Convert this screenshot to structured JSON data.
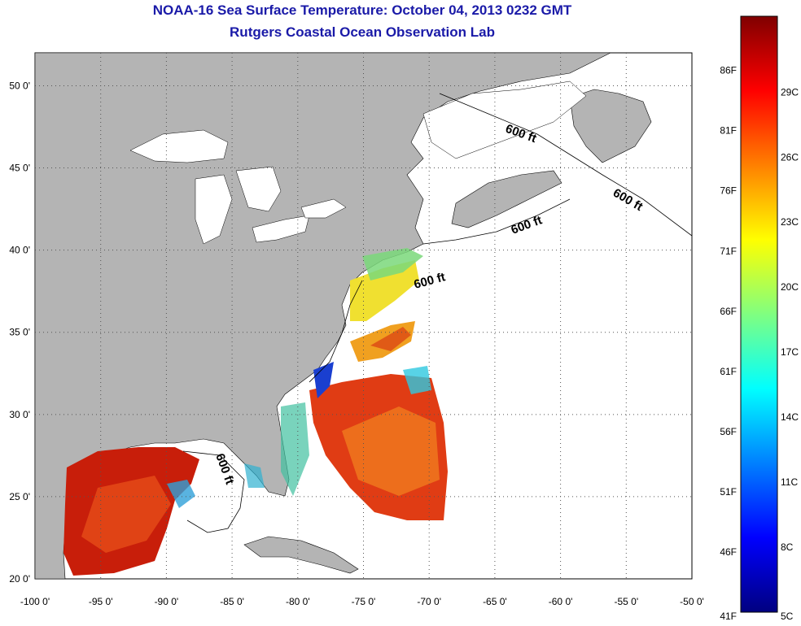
{
  "title": "NOAA-16 Sea Surface Temperature:  October 04, 2013 0232 GMT",
  "subtitle": "Rutgers Coastal Ocean Observation Lab",
  "map": {
    "lon_range": [
      -100,
      -50
    ],
    "lat_range": [
      20,
      52
    ],
    "grid": true,
    "lon_ticks": [
      "-100 0'",
      "-95 0'",
      "-90 0'",
      "-85 0'",
      "-80 0'",
      "-75 0'",
      "-70 0'",
      "-65 0'",
      "-60 0'",
      "-55 0'",
      "-50 0'"
    ],
    "lat_ticks": [
      "20 0'",
      "25 0'",
      "30 0'",
      "35 0'",
      "40 0'",
      "45 0'",
      "50 0'"
    ],
    "contour_labels": [
      "600 ft",
      "600 ft",
      "600 ft",
      "600 ft",
      "600 ft"
    ],
    "land_color": "#b4b4b4",
    "no_data_color": "#ffffff"
  },
  "colorbar": {
    "fahrenheit_labels": [
      "86F",
      "81F",
      "76F",
      "71F",
      "66F",
      "61F",
      "56F",
      "51F",
      "46F",
      "41F"
    ],
    "celsius_labels": [
      "29C",
      "26C",
      "23C",
      "20C",
      "17C",
      "14C",
      "11C",
      "8C",
      "5C"
    ],
    "colors": [
      "#800000",
      "#ff0000",
      "#ff8000",
      "#ffff00",
      "#80ff80",
      "#00ffff",
      "#0080ff",
      "#0000ff",
      "#000080"
    ]
  }
}
